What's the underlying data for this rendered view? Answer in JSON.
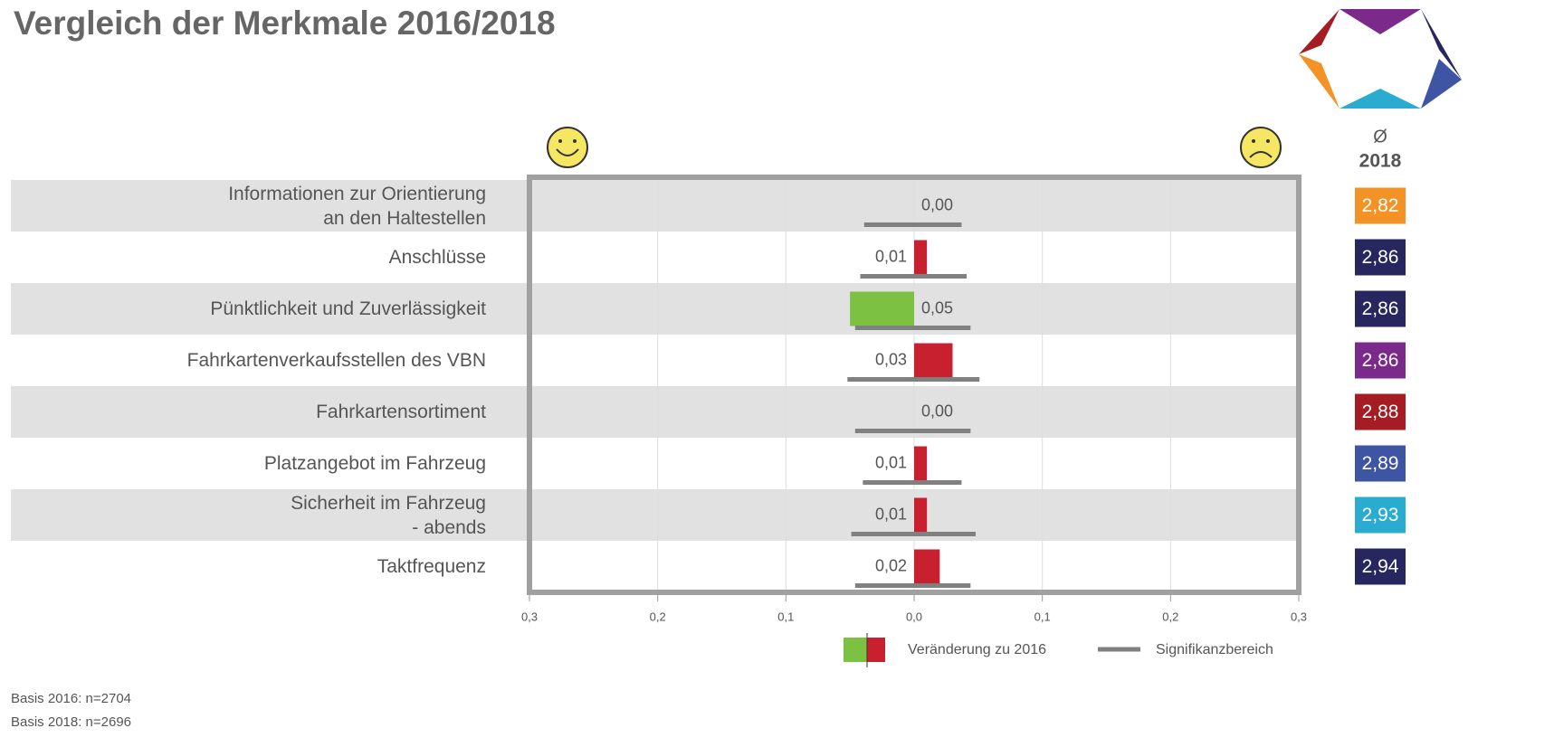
{
  "chart_data": {
    "type": "diverging-bar",
    "title": "Vergleich der Merkmale 2016/2018",
    "categories": [
      "Informationen zur Orientierung\nan den Haltestellen",
      "Anschlüsse",
      "Pünktlichkeit und Zuverlässigkeit",
      "Fahrkartenverkaufsstellen des VBN",
      "Fahrkartensortiment",
      "Platzangebot im Fahrzeug",
      "Sicherheit im Fahrzeug\n- abends",
      "Taktfrequenz"
    ],
    "series": [
      {
        "name": "Veränderung zu 2016",
        "color_increase": "#c8202f",
        "color_decrease": "#7dc142",
        "values": [
          0,
          0.01,
          -0.05,
          0.03,
          0,
          0.01,
          0.01,
          0.02
        ],
        "value_labels": [
          "0,00",
          "0,01",
          "0,05",
          "0,03",
          "0,00",
          "0,01",
          "0,01",
          "0,02"
        ]
      },
      {
        "name": "Signifikanzbereich",
        "color": "#808080",
        "low": [
          -0.039,
          -0.042,
          -0.046,
          -0.052,
          -0.046,
          -0.04,
          -0.049,
          -0.046
        ],
        "high": [
          0.037,
          0.041,
          0.044,
          0.051,
          0.044,
          0.037,
          0.048,
          0.044
        ]
      }
    ],
    "xlim": [
      -0.3,
      0.3
    ],
    "xticks": [
      {
        "value": -0.3,
        "label": "0,3"
      },
      {
        "value": -0.2,
        "label": "0,2"
      },
      {
        "value": -0.1,
        "label": "0,1"
      },
      {
        "value": 0,
        "label": "0,0"
      },
      {
        "value": 0.1,
        "label": "0,1"
      },
      {
        "value": 0.2,
        "label": "0,2"
      },
      {
        "value": 0.3,
        "label": "0,3"
      }
    ],
    "grid": true,
    "averages": {
      "symbol": "Ø",
      "year": "2018",
      "values": [
        2.82,
        2.86,
        2.86,
        2.86,
        2.88,
        2.89,
        2.93,
        2.94
      ],
      "value_labels": [
        "2,82",
        "2,86",
        "2,86",
        "2,86",
        "2,88",
        "2,89",
        "2,93",
        "2,94"
      ],
      "colors": [
        "#f39325",
        "#27265f",
        "#27265f",
        "#7b2a8c",
        "#a51d23",
        "#3e55a4",
        "#29acd0",
        "#27265f"
      ]
    },
    "footnotes": [
      "Basis 2016: n=2704",
      "Basis 2018: n=2696"
    ]
  }
}
